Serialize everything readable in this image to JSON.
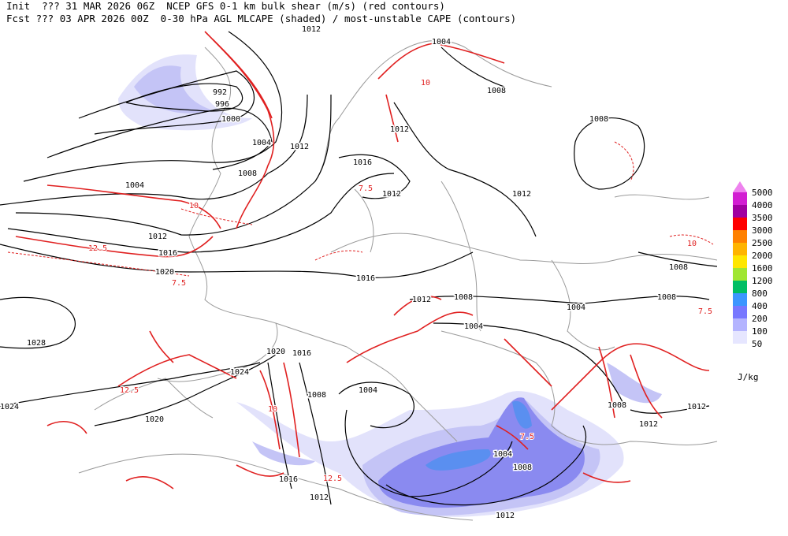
{
  "header": {
    "line1": "Init  ??? 31 MAR 2026 06Z  NCEP GFS 0-1 km bulk shear (m/s) (red contours)",
    "line2": "Fcst ??? 03 APR 2026 00Z  0-30 hPa AGL MLCAPE (shaded) / most-unstable CAPE (contours)"
  },
  "isobar_labels": [
    "1012",
    "1004",
    "992",
    "996",
    "1000",
    "1004",
    "1012",
    "1008",
    "1008",
    "1016",
    "1012",
    "1008",
    "1004",
    "1012",
    "1012",
    "1012",
    "1016",
    "1020",
    "1016",
    "1008",
    "1028",
    "1012",
    "1008",
    "1004",
    "1008",
    "1004",
    "1020",
    "1016",
    "1024",
    "1024",
    "1020",
    "1008",
    "1004",
    "1008",
    "1012",
    "1012",
    "1004",
    "1008",
    "1016",
    "1012",
    "1012"
  ],
  "shear_labels": [
    "10",
    "12.5",
    "7.5",
    "10",
    "12.5",
    "7.5",
    "10",
    "7.5",
    "10",
    "12.5",
    "7.5"
  ],
  "legend": {
    "entries": [
      {
        "label": "5000",
        "color": "#ee82ee"
      },
      {
        "label": "4000",
        "color": "#d21ed2"
      },
      {
        "label": "3500",
        "color": "#a000a0"
      },
      {
        "label": "3000",
        "color": "#ff0000"
      },
      {
        "label": "2500",
        "color": "#ff8000"
      },
      {
        "label": "2000",
        "color": "#ffb400"
      },
      {
        "label": "1600",
        "color": "#ffe600"
      },
      {
        "label": "1200",
        "color": "#a0e632"
      },
      {
        "label": "800",
        "color": "#00be64"
      },
      {
        "label": "400",
        "color": "#3c96ff"
      },
      {
        "label": "200",
        "color": "#7878ff"
      },
      {
        "label": "100",
        "color": "#b4b4ff"
      },
      {
        "label": "50",
        "color": "#e6e6ff"
      }
    ],
    "unit": "J/kg"
  }
}
